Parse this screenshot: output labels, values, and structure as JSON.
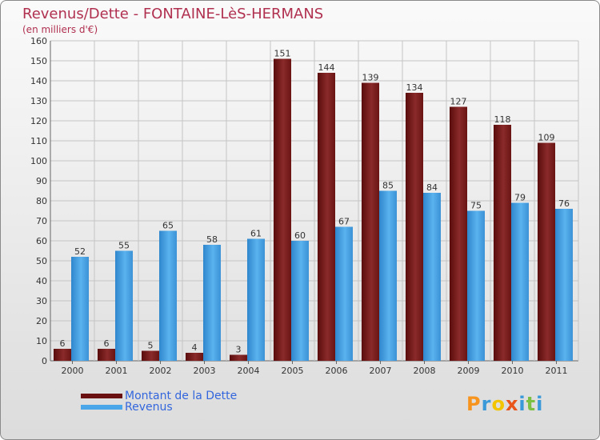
{
  "title": "Revenus/Dette - FONTAINE-LèS-HERMANS",
  "subtitle": "(en milliers d'€)",
  "legend": {
    "dette": "Montant de la Dette",
    "revenus": "Revenus"
  },
  "logo": {
    "text": "Proxiti",
    "colors": [
      "#f7941d",
      "#3a9ad9",
      "#f2c500",
      "#e8541a",
      "#3a9ad9",
      "#7bc043",
      "#3a9ad9"
    ]
  },
  "colors": {
    "dette": "#7a1a1a",
    "revenus": "#4aa6e8",
    "title": "#b03050",
    "legend_text": "#3366dd"
  },
  "chart_data": {
    "type": "bar",
    "title": "Revenus/Dette - FONTAINE-LèS-HERMANS",
    "subtitle": "(en milliers d'€)",
    "categories": [
      "2000",
      "2001",
      "2002",
      "2003",
      "2004",
      "2005",
      "2006",
      "2007",
      "2008",
      "2009",
      "2010",
      "2011"
    ],
    "series": [
      {
        "name": "Montant de la Dette",
        "values": [
          6,
          6,
          5,
          4,
          3,
          151,
          144,
          139,
          134,
          127,
          118,
          109
        ]
      },
      {
        "name": "Revenus",
        "values": [
          52,
          55,
          65,
          58,
          61,
          60,
          67,
          85,
          84,
          75,
          79,
          76
        ]
      }
    ],
    "ylim": [
      0,
      160
    ],
    "yticks": [
      0,
      10,
      20,
      30,
      40,
      50,
      60,
      70,
      80,
      90,
      100,
      110,
      120,
      130,
      140,
      150,
      160
    ],
    "grid": true,
    "legend_position": "bottom-left"
  }
}
